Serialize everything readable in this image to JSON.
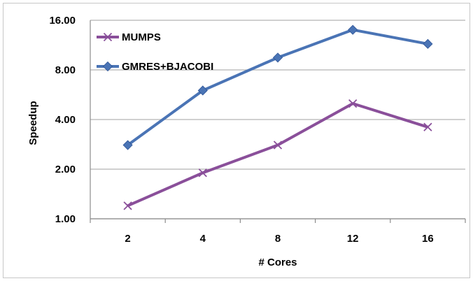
{
  "chart_data": {
    "type": "line",
    "title": "",
    "xlabel": "# Cores",
    "ylabel": "Speedup",
    "y_scale": "log2",
    "ylim": [
      1,
      16
    ],
    "y_ticks": [
      "1.00",
      "2.00",
      "4.00",
      "8.00",
      "16.00"
    ],
    "y_tick_values": [
      1,
      2,
      4,
      8,
      16
    ],
    "categories": [
      "2",
      "4",
      "8",
      "12",
      "16"
    ],
    "grid": "horizontal",
    "legend_position": "top-left",
    "series": [
      {
        "name": "MUMPS",
        "values": [
          1.2,
          1.9,
          2.8,
          5.0,
          3.6
        ],
        "color": "#8a4f9a",
        "marker": "x"
      },
      {
        "name": "GMRES+BJACOBI",
        "values": [
          2.8,
          6.0,
          9.5,
          14.0,
          11.5
        ],
        "color": "#4a74b5",
        "marker": "diamond"
      }
    ]
  }
}
